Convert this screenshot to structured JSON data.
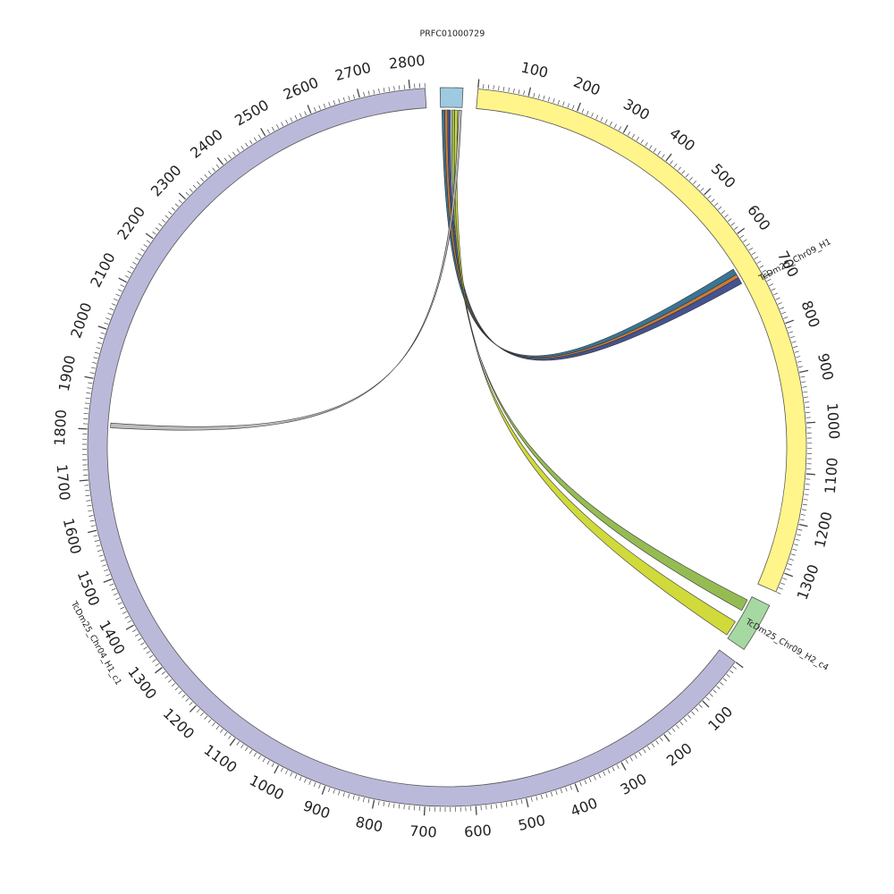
{
  "diagram": {
    "type": "circos",
    "tick_unit_step": 100,
    "chromosomes": [
      {
        "id": "PRFC01000729",
        "label": "PRFC01000729",
        "length": 45,
        "color": "#9ecae1",
        "show_ticks": false
      },
      {
        "id": "TcDm25_Chr09_H1",
        "label": "TcDm25_Chr09_H1",
        "length": 1340,
        "color": "#fff58a",
        "show_ticks": true
      },
      {
        "id": "TcDm25_Chr09_H2_c4",
        "label": "TcDm25_Chr09_H2_c4",
        "length": 100,
        "color": "#a6d9a1",
        "show_ticks": false
      },
      {
        "id": "TcDm25_Chr04_H1_c1",
        "label": "TcDm25_Chr04_H1_c1",
        "length": 2830,
        "color": "#bbb9da",
        "show_ticks": true
      }
    ],
    "chromosome_order_display": [
      "PRFC01000729",
      "TcDm25_Chr09_H1",
      "TcDm25_Chr09_H2_c4",
      "TcDm25_Chr04_H1_c1"
    ],
    "tick_label_texts": {
      "TcDm25_Chr09_H1": [
        "100",
        "200",
        "300",
        "400",
        "500",
        "600",
        "700",
        "800",
        "900",
        "1000",
        "1100",
        "1200",
        "1300"
      ],
      "TcDm25_Chr04_H1_c1": [
        "100",
        "200",
        "300",
        "400",
        "500",
        "600",
        "700",
        "800",
        "900",
        "1000",
        "1100",
        "1200",
        "1300",
        "1400",
        "1500",
        "1600",
        "1700",
        "1800",
        "1900",
        "2000",
        "2100",
        "2200",
        "2300",
        "2400",
        "2500",
        "2600",
        "2700",
        "2800"
      ]
    },
    "links": [
      {
        "name": "link-prfc-chr09h1-a",
        "source": "PRFC01000729",
        "target": "TcDm25_Chr09_H1",
        "target_start": 655,
        "target_end": 668,
        "color": "#2e6e8e"
      },
      {
        "name": "link-prfc-chr09h1-b",
        "source": "PRFC01000729",
        "target": "TcDm25_Chr09_H1",
        "target_start": 668,
        "target_end": 676,
        "color": "#c8742f"
      },
      {
        "name": "link-prfc-chr09h1-c",
        "source": "PRFC01000729",
        "target": "TcDm25_Chr09_H1",
        "target_start": 676,
        "target_end": 690,
        "color": "#3b4a8a"
      },
      {
        "name": "link-prfc-chr09h2-a",
        "source": "PRFC01000729",
        "target": "TcDm25_Chr09_H2_c4",
        "target_start": 10,
        "target_end": 35,
        "color": "#8fb84a"
      },
      {
        "name": "link-prfc-chr09h2-b",
        "source": "PRFC01000729",
        "target": "TcDm25_Chr09_H2_c4",
        "target_start": 62,
        "target_end": 95,
        "color": "#cdd830"
      },
      {
        "name": "link-prfc-chr04h1",
        "source": "PRFC01000729",
        "target": "TcDm25_Chr04_H1_c1",
        "target_start": 1805,
        "target_end": 1815,
        "color": "#b8b8b8"
      }
    ]
  }
}
